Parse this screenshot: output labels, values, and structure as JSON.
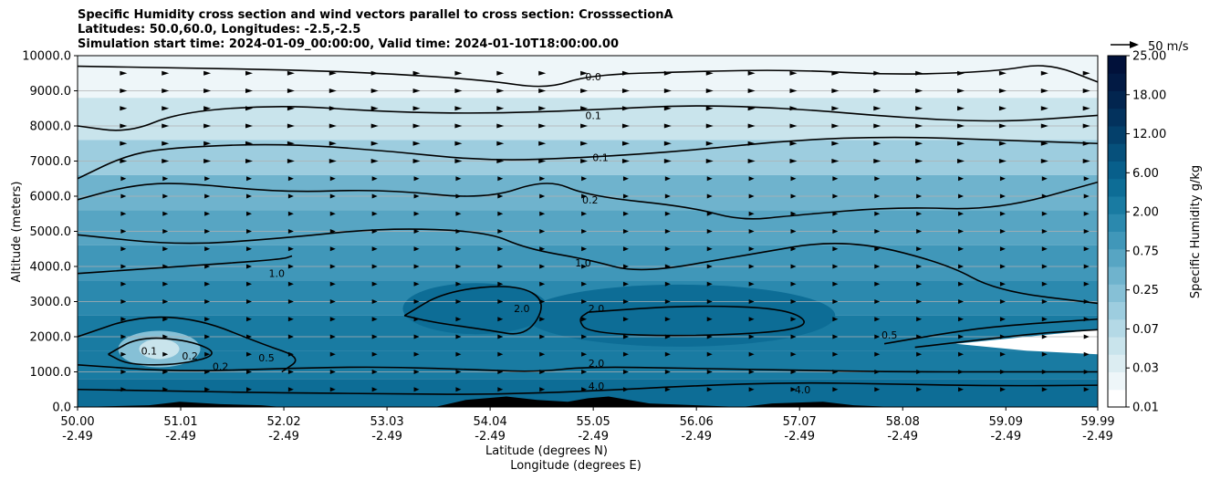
{
  "chart_data": {
    "type": "contour",
    "title_lines": [
      "Specific Humidity cross section and wind vectors parallel to cross section: CrosssectionA",
      "Latitudes: 50.0,60.0, Longitudes: -2.5,-2.5",
      "Simulation start time: 2024-01-09_00:00:00, Valid time: 2024-01-10T18:00:00.00"
    ],
    "ylabel": "Altitude (meters)",
    "xlabel_lines": [
      "Latitude (degrees N)",
      "Longitude (degrees E)"
    ],
    "ylim": [
      0,
      10000
    ],
    "y_ticks": [
      {
        "value": 0,
        "label": "0.0"
      },
      {
        "value": 1000,
        "label": "1000.0"
      },
      {
        "value": 2000,
        "label": "2000.0"
      },
      {
        "value": 3000,
        "label": "3000.0"
      },
      {
        "value": 4000,
        "label": "4000.0"
      },
      {
        "value": 5000,
        "label": "5000.0"
      },
      {
        "value": 6000,
        "label": "6000.0"
      },
      {
        "value": 7000,
        "label": "7000.0"
      },
      {
        "value": 8000,
        "label": "8000.0"
      },
      {
        "value": 9000,
        "label": "9000.0"
      },
      {
        "value": 10000,
        "label": "10000.0"
      }
    ],
    "xlim": [
      50.0,
      59.99
    ],
    "x_ticks": [
      {
        "value": 50.0,
        "lat": "50.00",
        "lon": "-2.49"
      },
      {
        "value": 51.01,
        "lat": "51.01",
        "lon": "-2.49"
      },
      {
        "value": 52.02,
        "lat": "52.02",
        "lon": "-2.49"
      },
      {
        "value": 53.03,
        "lat": "53.03",
        "lon": "-2.49"
      },
      {
        "value": 54.04,
        "lat": "54.04",
        "lon": "-2.49"
      },
      {
        "value": 55.05,
        "lat": "55.05",
        "lon": "-2.49"
      },
      {
        "value": 56.06,
        "lat": "56.06",
        "lon": "-2.49"
      },
      {
        "value": 57.07,
        "lat": "57.07",
        "lon": "-2.49"
      },
      {
        "value": 58.08,
        "lat": "58.08",
        "lon": "-2.49"
      },
      {
        "value": 59.09,
        "lat": "59.09",
        "lon": "-2.49"
      },
      {
        "value": 59.99,
        "lat": "59.99",
        "lon": "-2.49"
      }
    ],
    "grid": "horizontal",
    "colorbar": {
      "label": "Specific Humidity g/kg",
      "tick_labels": [
        "0.01",
        "0.03",
        "0.07",
        "0.25",
        "0.75",
        "2.00",
        "6.00",
        "12.00",
        "18.00",
        "25.00"
      ],
      "colors": [
        "#ffffff",
        "#eef6f9",
        "#dcedf2",
        "#c9e4ec",
        "#b4d9e6",
        "#9dcddf",
        "#86c0d6",
        "#6fb3cd",
        "#57a5c3",
        "#4097b9",
        "#2b89ae",
        "#197ba2",
        "#0d6d96",
        "#085f8b",
        "#06507b",
        "#04406b",
        "#03325d",
        "#02254f",
        "#021a44",
        "#01113a"
      ]
    },
    "vector_key": {
      "label": "50 m/s"
    },
    "contour_labels": [
      {
        "text": "0.0",
        "x": 55.05,
        "y": 9400
      },
      {
        "text": "0.1",
        "x": 55.05,
        "y": 8300
      },
      {
        "text": "0.1",
        "x": 55.12,
        "y": 7100
      },
      {
        "text": "0.2",
        "x": 55.02,
        "y": 5900
      },
      {
        "text": "1.0",
        "x": 54.95,
        "y": 4100
      },
      {
        "text": "2.0",
        "x": 55.08,
        "y": 2800
      },
      {
        "text": "2.0",
        "x": 55.08,
        "y": 1250
      },
      {
        "text": "4.0",
        "x": 55.08,
        "y": 600
      },
      {
        "text": "1.0",
        "x": 51.95,
        "y": 3800
      },
      {
        "text": "2.0",
        "x": 54.35,
        "y": 2800
      },
      {
        "text": "0.1",
        "x": 50.7,
        "y": 1600
      },
      {
        "text": "0.2",
        "x": 51.1,
        "y": 1450
      },
      {
        "text": "0.2",
        "x": 51.4,
        "y": 1150
      },
      {
        "text": "0.5",
        "x": 51.85,
        "y": 1400
      },
      {
        "text": "0.5",
        "x": 57.95,
        "y": 2050
      },
      {
        "text": "4.0",
        "x": 57.1,
        "y": 500
      }
    ],
    "contour_lines": [
      {
        "level": "0.0",
        "points": [
          [
            50.0,
            9700
          ],
          [
            51.0,
            9650
          ],
          [
            52.0,
            9600
          ],
          [
            53.0,
            9500
          ],
          [
            54.0,
            9300
          ],
          [
            54.6,
            9050
          ],
          [
            55.0,
            9450
          ],
          [
            56.0,
            9550
          ],
          [
            57.0,
            9600
          ],
          [
            58.0,
            9450
          ],
          [
            59.0,
            9550
          ],
          [
            59.5,
            9800
          ],
          [
            59.99,
            9250
          ]
        ]
      },
      {
        "level": "0.1",
        "points": [
          [
            50.0,
            8000
          ],
          [
            50.5,
            7800
          ],
          [
            51.0,
            8400
          ],
          [
            52.0,
            8600
          ],
          [
            53.0,
            8400
          ],
          [
            54.0,
            8350
          ],
          [
            55.0,
            8450
          ],
          [
            56.0,
            8600
          ],
          [
            57.0,
            8500
          ],
          [
            58.0,
            8250
          ],
          [
            59.0,
            8100
          ],
          [
            59.99,
            8300
          ]
        ]
      },
      {
        "level": "0.1",
        "points": [
          [
            50.0,
            6500
          ],
          [
            50.5,
            7200
          ],
          [
            51.0,
            7400
          ],
          [
            52.0,
            7500
          ],
          [
            53.0,
            7300
          ],
          [
            54.0,
            7000
          ],
          [
            55.0,
            7100
          ],
          [
            56.0,
            7300
          ],
          [
            57.0,
            7600
          ],
          [
            58.0,
            7700
          ],
          [
            59.0,
            7600
          ],
          [
            59.99,
            7500
          ]
        ]
      },
      {
        "level": "0.2",
        "points": [
          [
            50.0,
            5900
          ],
          [
            50.5,
            6300
          ],
          [
            51.0,
            6400
          ],
          [
            52.0,
            6100
          ],
          [
            53.0,
            6200
          ],
          [
            54.0,
            5900
          ],
          [
            54.6,
            6500
          ],
          [
            55.0,
            6000
          ],
          [
            56.0,
            5700
          ],
          [
            56.5,
            5300
          ],
          [
            57.0,
            5450
          ],
          [
            58.0,
            5700
          ],
          [
            59.0,
            5600
          ],
          [
            59.99,
            6400
          ]
        ]
      },
      {
        "level": "1.0",
        "points": [
          [
            50.0,
            4900
          ],
          [
            51.0,
            4600
          ],
          [
            52.0,
            4800
          ],
          [
            53.0,
            5100
          ],
          [
            54.0,
            5000
          ],
          [
            54.4,
            4500
          ],
          [
            55.0,
            4200
          ],
          [
            55.5,
            3800
          ],
          [
            56.5,
            4300
          ],
          [
            57.5,
            4800
          ],
          [
            58.5,
            4100
          ],
          [
            59.0,
            3300
          ],
          [
            59.99,
            2950
          ]
        ]
      },
      {
        "level": "1.0",
        "points": [
          [
            50.0,
            3800
          ],
          [
            50.5,
            3900
          ],
          [
            51.0,
            4000
          ],
          [
            52.0,
            4200
          ],
          [
            52.1,
            4300
          ]
        ]
      },
      {
        "level": "2.0",
        "points": [
          [
            53.2,
            2600
          ],
          [
            53.6,
            3300
          ],
          [
            54.3,
            3500
          ],
          [
            54.6,
            3000
          ],
          [
            54.4,
            2000
          ],
          [
            54.0,
            2200
          ],
          [
            53.5,
            2400
          ],
          [
            53.2,
            2600
          ]
        ]
      },
      {
        "level": "2.0",
        "points": [
          [
            55.0,
            2700
          ],
          [
            56.0,
            2900
          ],
          [
            57.0,
            2800
          ],
          [
            57.2,
            2200
          ],
          [
            56.0,
            2000
          ],
          [
            55.0,
            2100
          ],
          [
            54.9,
            2500
          ],
          [
            55.0,
            2700
          ]
        ]
      },
      {
        "level": "2.0",
        "points": [
          [
            50.0,
            1200
          ],
          [
            51.0,
            1000
          ],
          [
            52.0,
            1100
          ],
          [
            53.0,
            1150
          ],
          [
            54.0,
            1050
          ],
          [
            54.5,
            1000
          ],
          [
            55.0,
            1150
          ],
          [
            56.0,
            1100
          ],
          [
            57.0,
            1050
          ],
          [
            58.0,
            1000
          ],
          [
            59.0,
            1000
          ],
          [
            59.99,
            1000
          ]
        ]
      },
      {
        "level": "4.0",
        "points": [
          [
            50.0,
            500
          ],
          [
            51.0,
            450
          ],
          [
            52.0,
            400
          ],
          [
            53.0,
            380
          ],
          [
            54.0,
            350
          ],
          [
            55.0,
            450
          ],
          [
            56.0,
            600
          ],
          [
            57.0,
            700
          ],
          [
            58.0,
            650
          ],
          [
            59.0,
            600
          ],
          [
            59.99,
            620
          ]
        ]
      },
      {
        "level": "0.1",
        "points": [
          [
            50.3,
            1500
          ],
          [
            50.6,
            2000
          ],
          [
            51.1,
            1900
          ],
          [
            51.4,
            1500
          ],
          [
            51.0,
            1200
          ],
          [
            50.5,
            1200
          ],
          [
            50.3,
            1500
          ]
        ]
      },
      {
        "level": "0.5",
        "points": [
          [
            50.0,
            2000
          ],
          [
            50.6,
            2600
          ],
          [
            51.2,
            2500
          ],
          [
            51.8,
            1800
          ],
          [
            52.2,
            1400
          ],
          [
            52.0,
            1000
          ]
        ]
      },
      {
        "level": "0.5",
        "points": [
          [
            57.9,
            1800
          ],
          [
            58.5,
            2100
          ],
          [
            59.0,
            2300
          ],
          [
            59.99,
            2500
          ]
        ]
      },
      {
        "level": "0.2",
        "points": [
          [
            58.2,
            1700
          ],
          [
            58.8,
            1900
          ],
          [
            59.4,
            2100
          ],
          [
            59.99,
            2200
          ]
        ]
      }
    ],
    "wind_vectors": {
      "x_start": 50.45,
      "x_step": 0.41,
      "y_start": 500,
      "y_step": 500,
      "rows": 19,
      "cols": 27,
      "direction": "east"
    },
    "terrain": [
      [
        50.0,
        0
      ],
      [
        50.7,
        50
      ],
      [
        51.0,
        150
      ],
      [
        51.4,
        80
      ],
      [
        51.8,
        50
      ],
      [
        52.0,
        0
      ],
      [
        53.5,
        0
      ],
      [
        53.8,
        200
      ],
      [
        54.2,
        300
      ],
      [
        54.5,
        200
      ],
      [
        54.8,
        150
      ],
      [
        55.0,
        250
      ],
      [
        55.2,
        300
      ],
      [
        55.6,
        100
      ],
      [
        56.5,
        0
      ],
      [
        56.8,
        100
      ],
      [
        57.3,
        150
      ],
      [
        57.6,
        50
      ],
      [
        58.0,
        0
      ],
      [
        59.99,
        0
      ]
    ]
  }
}
